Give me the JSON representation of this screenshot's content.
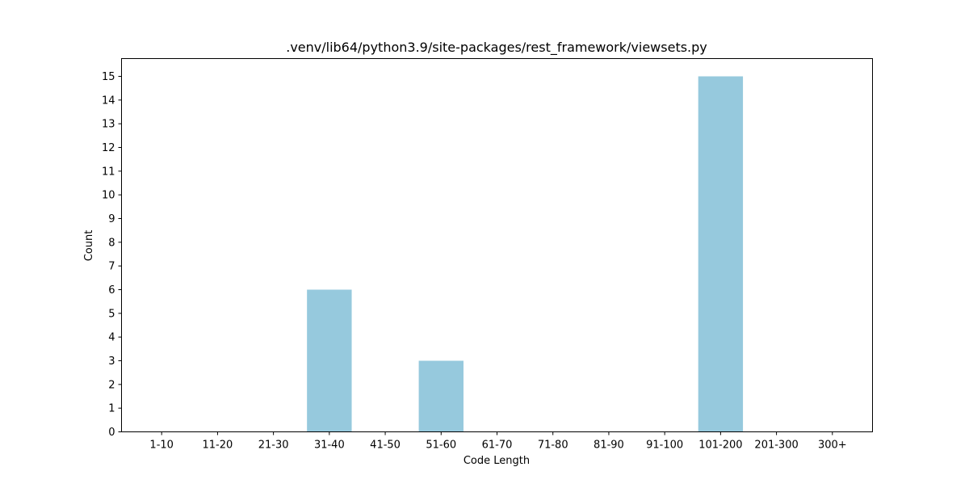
{
  "chart_data": {
    "type": "bar",
    "title": ".venv/lib64/python3.9/site-packages/rest_framework/viewsets.py",
    "xlabel": "Code Length",
    "ylabel": "Count",
    "categories": [
      "1-10",
      "11-20",
      "21-30",
      "31-40",
      "41-50",
      "51-60",
      "61-70",
      "71-80",
      "81-90",
      "91-100",
      "101-200",
      "201-300",
      "300+"
    ],
    "values": [
      0,
      0,
      0,
      6,
      0,
      3,
      0,
      0,
      0,
      0,
      15,
      0,
      0
    ],
    "ylim": [
      0,
      15.75
    ],
    "yticks": [
      0,
      1,
      2,
      3,
      4,
      5,
      6,
      7,
      8,
      9,
      10,
      11,
      12,
      13,
      14,
      15
    ],
    "grid": false,
    "colors": {
      "bar": "#96c9dd",
      "axis": "#000000"
    }
  }
}
